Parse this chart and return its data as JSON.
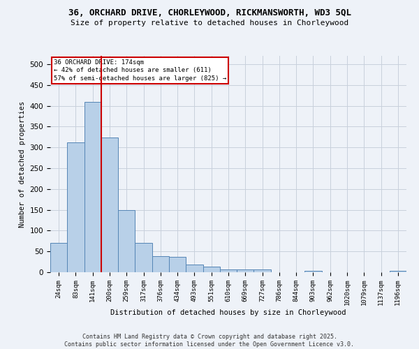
{
  "title_line1": "36, ORCHARD DRIVE, CHORLEYWOOD, RICKMANSWORTH, WD3 5QL",
  "title_line2": "Size of property relative to detached houses in Chorleywood",
  "xlabel": "Distribution of detached houses by size in Chorleywood",
  "ylabel": "Number of detached properties",
  "categories": [
    "24sqm",
    "83sqm",
    "141sqm",
    "200sqm",
    "259sqm",
    "317sqm",
    "376sqm",
    "434sqm",
    "493sqm",
    "551sqm",
    "610sqm",
    "669sqm",
    "727sqm",
    "786sqm",
    "844sqm",
    "903sqm",
    "962sqm",
    "1020sqm",
    "1079sqm",
    "1137sqm",
    "1196sqm"
  ],
  "values": [
    70,
    312,
    410,
    323,
    150,
    70,
    38,
    37,
    18,
    13,
    6,
    6,
    6,
    0,
    0,
    3,
    0,
    0,
    0,
    0,
    3
  ],
  "bar_color": "#b8d0e8",
  "bar_edge_color": "#5585b5",
  "background_color": "#eef2f8",
  "grid_color": "#c8d0dc",
  "red_line_x": 2.5,
  "annotation_text_line1": "36 ORCHARD DRIVE: 174sqm",
  "annotation_text_line2": "← 42% of detached houses are smaller (611)",
  "annotation_text_line3": "57% of semi-detached houses are larger (825) →",
  "annotation_box_color": "#ffffff",
  "annotation_border_color": "#cc0000",
  "red_line_color": "#cc0000",
  "footer_line1": "Contains HM Land Registry data © Crown copyright and database right 2025.",
  "footer_line2": "Contains public sector information licensed under the Open Government Licence v3.0.",
  "ylim": [
    0,
    520
  ],
  "yticks": [
    0,
    50,
    100,
    150,
    200,
    250,
    300,
    350,
    400,
    450,
    500
  ]
}
